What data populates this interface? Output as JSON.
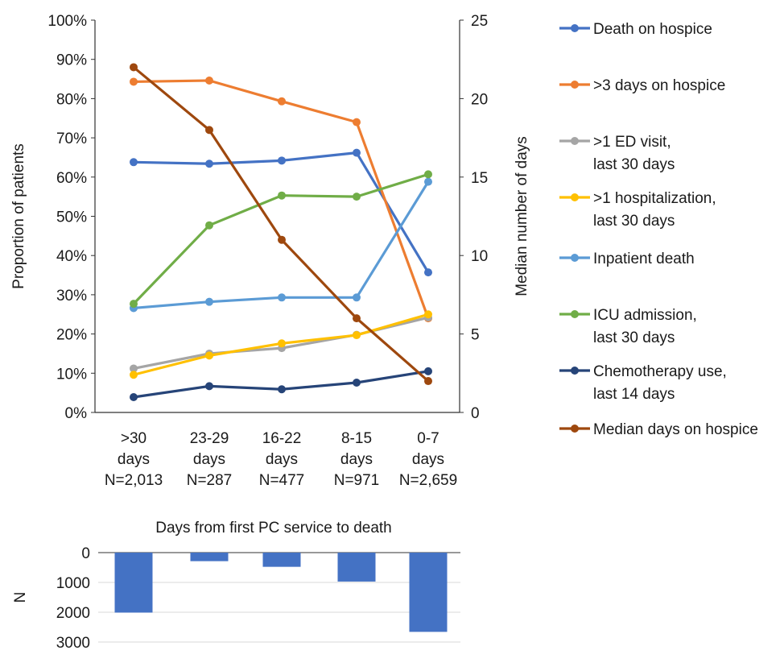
{
  "chart_data": [
    {
      "type": "line",
      "categories": [
        [
          "&gt;30",
          "days",
          "N=2,013"
        ],
        [
          "23-29",
          "days",
          "N=287"
        ],
        [
          "16-22",
          "days",
          "N=477"
        ],
        [
          "8-15",
          "days",
          "N=971"
        ],
        [
          "0-7",
          "days",
          "N=2,659"
        ]
      ],
      "y_left": {
        "label": "Proportion of patients",
        "min": 0,
        "max": 100,
        "step": 10,
        "unit": "%",
        "ticks": [
          "0%",
          "10%",
          "20%",
          "30%",
          "40%",
          "50%",
          "60%",
          "70%",
          "80%",
          "90%",
          "100%"
        ]
      },
      "y_right": {
        "label": "Median number of days",
        "min": 0,
        "max": 25,
        "step": 5,
        "ticks": [
          "0",
          "5",
          "10",
          "15",
          "20",
          "25"
        ]
      },
      "series": [
        {
          "name": "Death on hospice",
          "axis": "left",
          "color": "#4472c4",
          "values": [
            63.8,
            63.4,
            64.2,
            66.2,
            35.7
          ]
        },
        {
          "name": ">3 days on hospice",
          "axis": "left",
          "color": "#ed7d31",
          "values": [
            84.3,
            84.6,
            79.3,
            74.0,
            24.0
          ]
        },
        {
          "name": ">1 ED visit, last 30 days",
          "axis": "left",
          "color": "#a5a5a5",
          "values": [
            11.2,
            15.0,
            16.4,
            19.8,
            24.2
          ]
        },
        {
          "name": ">1 hospitalization, last 30 days",
          "axis": "left",
          "color": "#ffc000",
          "values": [
            9.6,
            14.5,
            17.6,
            19.7,
            25.0
          ]
        },
        {
          "name": "Inpatient death",
          "axis": "left",
          "color": "#5b9bd5",
          "values": [
            26.6,
            28.2,
            29.3,
            29.3,
            58.8
          ]
        },
        {
          "name": "ICU admission, last 30 days",
          "axis": "left",
          "color": "#70ad47",
          "values": [
            27.7,
            47.7,
            55.3,
            55.0,
            60.7
          ]
        },
        {
          "name": "Chemotherapy use, last 14 days",
          "axis": "left",
          "color": "#264478",
          "values": [
            3.9,
            6.7,
            5.9,
            7.6,
            10.5
          ]
        },
        {
          "name": "Median days on hospice",
          "axis": "right",
          "color": "#9e480e",
          "values": [
            22,
            18,
            11,
            6,
            2
          ]
        }
      ],
      "legend": {
        "placement": "right",
        "entries": [
          {
            "lines": [
              "Death on hospice"
            ],
            "color": "#4472c4"
          },
          {
            "lines": [
              ">3 days on hospice"
            ],
            "color": "#ed7d31"
          },
          {
            "lines": [
              ">1 ED visit,",
              "last 30 days"
            ],
            "color": "#a5a5a5"
          },
          {
            "lines": [
              ">1 hospitalization,",
              "last 30 days"
            ],
            "color": "#ffc000"
          },
          {
            "lines": [
              "Inpatient death"
            ],
            "color": "#5b9bd5"
          },
          {
            "lines": [
              "ICU admission,",
              "last 30 days"
            ],
            "color": "#70ad47"
          },
          {
            "lines": [
              "Chemotherapy use,",
              "last 14 days"
            ],
            "color": "#264478"
          },
          {
            "lines": [
              "Median days on hospice"
            ],
            "color": "#9e480e"
          }
        ]
      },
      "grid": false
    },
    {
      "type": "bar",
      "title": "Days from first PC service to death",
      "ylabel": "N",
      "y_inverted": true,
      "ylim": [
        0,
        3000
      ],
      "ticks": [
        "0",
        "1000",
        "2000",
        "3000"
      ],
      "categories": [
        ">30",
        "23-29",
        "16-22",
        "8-15",
        "0-7"
      ],
      "values": [
        2013,
        287,
        477,
        971,
        2659
      ],
      "color": "#4472c4",
      "grid": true
    }
  ]
}
